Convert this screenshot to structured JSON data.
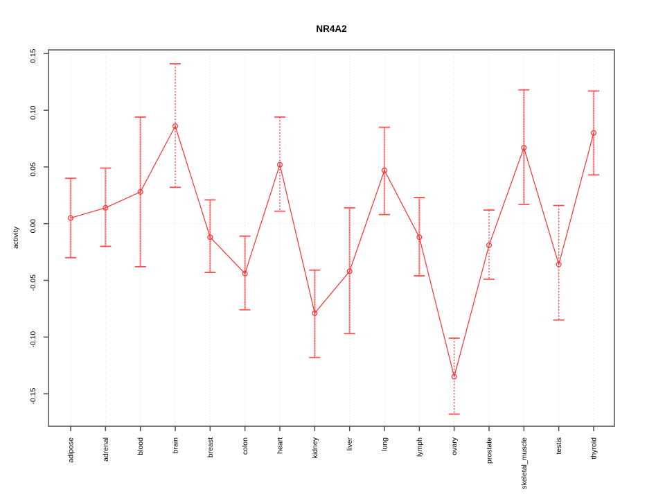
{
  "title": "NR4A2",
  "chart_data": {
    "type": "line",
    "title": "NR4A2",
    "xlabel": "",
    "ylabel": "activity",
    "ylim": [
      -0.179,
      0.153
    ],
    "y_ticks": [
      0.15,
      0.1,
      0.05,
      0.0,
      -0.05,
      -0.1,
      -0.15
    ],
    "y_tick_labels": [
      "0.15",
      "0.10",
      "0.05",
      "0.00",
      "-0.05",
      "-0.10",
      "-0.15"
    ],
    "grid": {
      "vertical": "dotted line at each category",
      "horizontal": "dotted line at zero only"
    },
    "legend": "none",
    "marker": "open-circle",
    "categories": [
      "adipose",
      "adrenal",
      "blood",
      "brain",
      "breast",
      "colon",
      "heart",
      "kidney",
      "liver",
      "lung",
      "lymph",
      "ovary",
      "prostate",
      "skeletal_muscle",
      "testis",
      "thyroid"
    ],
    "series": [
      {
        "name": "activity",
        "values": [
          0.005,
          0.014,
          0.028,
          0.086,
          -0.012,
          -0.044,
          0.052,
          -0.079,
          -0.042,
          0.047,
          -0.012,
          -0.135,
          -0.019,
          0.067,
          -0.036,
          0.08
        ],
        "error_low": [
          -0.03,
          -0.02,
          -0.038,
          0.032,
          -0.043,
          -0.076,
          0.011,
          -0.118,
          -0.097,
          0.008,
          -0.046,
          -0.168,
          -0.049,
          0.017,
          -0.085,
          0.043
        ],
        "error_high": [
          0.04,
          0.049,
          0.094,
          0.141,
          0.021,
          -0.011,
          0.094,
          -0.041,
          0.014,
          0.085,
          0.023,
          -0.101,
          0.012,
          0.118,
          0.016,
          0.117
        ]
      }
    ],
    "error_bar_stem_styles": [
      "solid",
      "solid",
      "solid",
      "dotted",
      "solid",
      "solid",
      "dotted",
      "solid",
      "solid",
      "solid",
      "solid",
      "dotted",
      "dotted",
      "solid",
      "dotted",
      "solid"
    ],
    "colors": {
      "line": "#ff2e2e",
      "point": "#ff2e2e",
      "error_stem_solid": "#ff9e9e",
      "error_stem_overlay": "#ff4040",
      "error_stem_dotted": "#ff3838",
      "error_cap": "#ff5050",
      "grid": "#dcdcdc",
      "box": "#7a7a7a",
      "tick": "#4a4a4a",
      "text": "#000000",
      "background": "#ffffff"
    }
  }
}
